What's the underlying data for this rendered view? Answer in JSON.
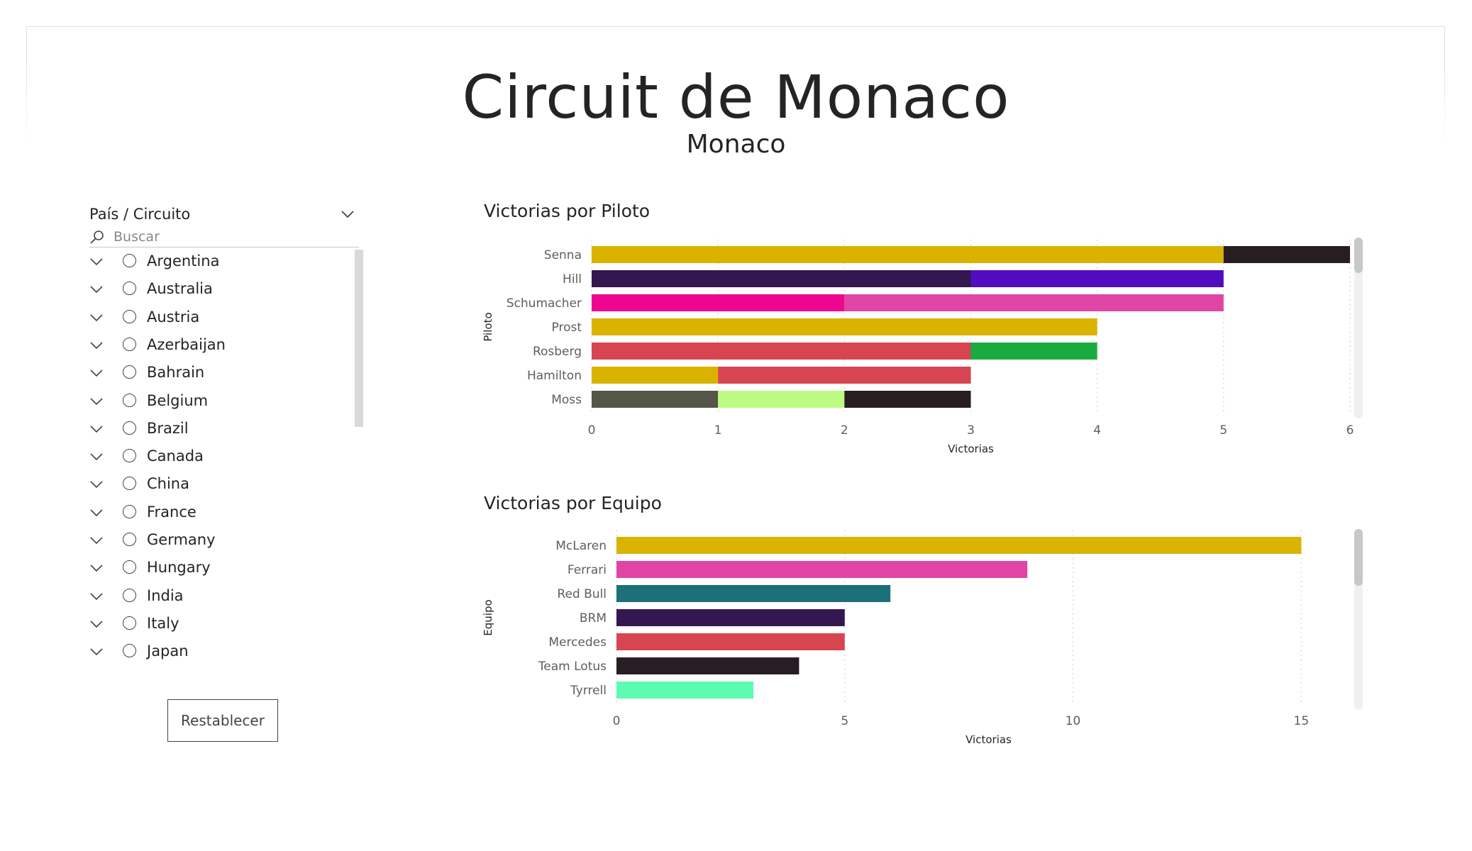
{
  "page": {
    "title": "Circuit de Monaco",
    "subtitle": "Monaco"
  },
  "slicer": {
    "header": "País / Circuito",
    "search_placeholder": "Buscar",
    "items": [
      {
        "label": "Argentina"
      },
      {
        "label": "Australia"
      },
      {
        "label": "Austria"
      },
      {
        "label": "Azerbaijan"
      },
      {
        "label": "Bahrain"
      },
      {
        "label": "Belgium"
      },
      {
        "label": "Brazil"
      },
      {
        "label": "Canada"
      },
      {
        "label": "China"
      },
      {
        "label": "France"
      },
      {
        "label": "Germany"
      },
      {
        "label": "Hungary"
      },
      {
        "label": "India"
      },
      {
        "label": "Italy"
      },
      {
        "label": "Japan"
      }
    ],
    "reset_label": "Restablecer"
  },
  "chart_data": [
    {
      "type": "bar",
      "orientation": "horizontal",
      "stacked": true,
      "title": "Victorias por Piloto",
      "xlabel": "Victorias",
      "ylabel": "Piloto",
      "xlim": [
        0,
        6
      ],
      "xticks": [
        "0",
        "1",
        "2",
        "3",
        "4",
        "5",
        "6"
      ],
      "grid": true,
      "categories": [
        "Senna",
        "Hill",
        "Schumacher",
        "Prost",
        "Rosberg",
        "Hamilton",
        "Moss"
      ],
      "segments": [
        [
          {
            "value": 5,
            "color": "#d9b300"
          },
          {
            "value": 1,
            "color": "#271d23"
          }
        ],
        [
          {
            "value": 3,
            "color": "#341650"
          },
          {
            "value": 2,
            "color": "#520cc0"
          }
        ],
        [
          {
            "value": 2,
            "color": "#ef0690"
          },
          {
            "value": 3,
            "color": "#e044a7"
          }
        ],
        [
          {
            "value": 4,
            "color": "#d9b300"
          }
        ],
        [
          {
            "value": 3,
            "color": "#d64550"
          },
          {
            "value": 1,
            "color": "#1aab40"
          }
        ],
        [
          {
            "value": 1,
            "color": "#d9b300"
          },
          {
            "value": 2,
            "color": "#d64550"
          }
        ],
        [
          {
            "value": 1,
            "color": "#555548"
          },
          {
            "value": 1,
            "color": "#bcfa82"
          },
          {
            "value": 1,
            "color": "#271d23"
          }
        ]
      ]
    },
    {
      "type": "bar",
      "orientation": "horizontal",
      "title": "Victorias por Equipo",
      "xlabel": "Victorias",
      "ylabel": "Equipo",
      "xlim": [
        0,
        16.3
      ],
      "xticks": [
        "0",
        "5",
        "10",
        "15"
      ],
      "xtick_values": [
        0,
        5,
        10,
        15
      ],
      "grid": true,
      "categories": [
        "McLaren",
        "Ferrari",
        "Red Bull",
        "BRM",
        "Mercedes",
        "Team Lotus",
        "Tyrrell"
      ],
      "values": [
        15,
        9,
        6,
        5,
        5,
        4,
        3
      ],
      "colors": [
        "#d9b300",
        "#e044a7",
        "#1c7077",
        "#341650",
        "#d64550",
        "#271d23",
        "#5cfdb0"
      ]
    }
  ]
}
